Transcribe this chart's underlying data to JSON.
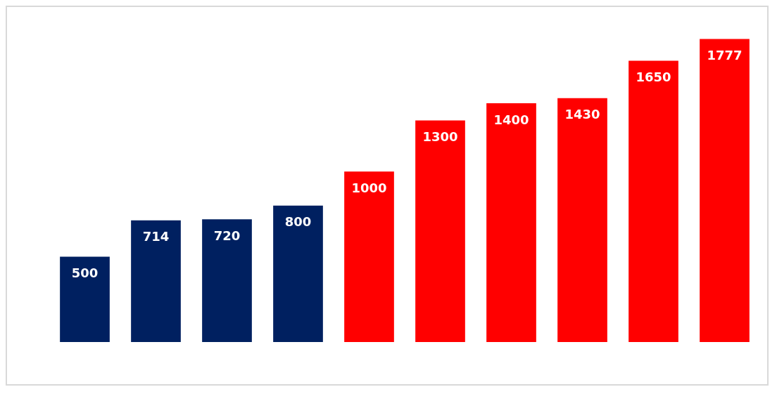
{
  "chart_data": {
    "type": "bar",
    "categories": [
      null,
      null,
      null,
      null,
      null,
      null,
      null,
      null,
      null,
      null
    ],
    "values": [
      500,
      714,
      720,
      800,
      1000,
      1300,
      1400,
      1430,
      1650,
      1777
    ],
    "colors": [
      "#002060",
      "#002060",
      "#002060",
      "#002060",
      "#ff0000",
      "#ff0000",
      "#ff0000",
      "#ff0000",
      "#ff0000",
      "#ff0000"
    ],
    "data_labels": true,
    "grid": false,
    "tick_labels": false
  }
}
